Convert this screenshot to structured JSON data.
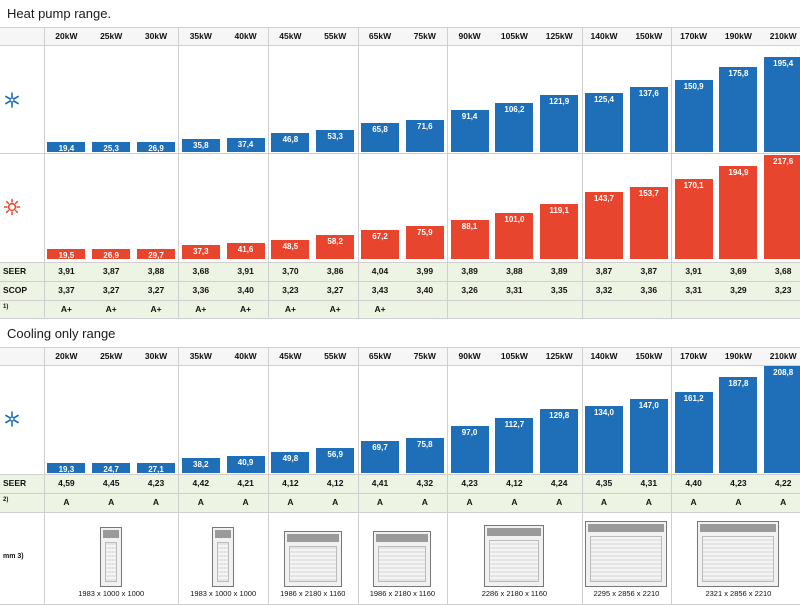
{
  "sections": [
    {
      "title": "Heat pump range.",
      "cooling_icon": "snowflake-icon",
      "heating_icon": "sun-icon",
      "row_labels": {
        "seer": "SEER",
        "scop": "SCOP",
        "energy": "1)"
      }
    },
    {
      "title": "Cooling only range",
      "cooling_icon": "snowflake-icon",
      "row_labels": {
        "seer": "SEER",
        "energy": "2)",
        "dimensions": "mm 3)"
      }
    }
  ],
  "colors": {
    "cooling": "#1f6fb8",
    "heating": "#e8452e",
    "efficiency_row": "#eef4e4"
  },
  "chart_data": [
    {
      "type": "bar",
      "categories": [
        "20kW",
        "25kW",
        "30kW",
        "35kW",
        "40kW",
        "45kW",
        "55kW",
        "65kW",
        "75kW",
        "90kW",
        "105kW",
        "125kW",
        "140kW",
        "150kW",
        "170kW",
        "190kW",
        "210kW"
      ],
      "series": [
        {
          "values": [
            19.4,
            25.3,
            26.9,
            35.8,
            37.4,
            46.8,
            53.3,
            65.8,
            71.6,
            91.4,
            106.2,
            121.9,
            125.4,
            137.6,
            150.9,
            175.8,
            195.4
          ],
          "labels": [
            "19,4",
            "25,3",
            "26,9",
            "35,8",
            "37,4",
            "46,8",
            "53,3",
            "65,8",
            "71,6",
            "91,4",
            "106,2",
            "121,9",
            "125,4",
            "137,6",
            "150,9",
            "175,8",
            "195,4"
          ]
        },
        {
          "values": [
            19.5,
            26.9,
            29.7,
            37.3,
            41.6,
            48.5,
            58.2,
            67.2,
            75.9,
            88.1,
            101.0,
            119.1,
            143.7,
            153.7,
            170.1,
            194.9,
            217.6
          ],
          "labels": [
            "19,5",
            "26,9",
            "29,7",
            "37,3",
            "41,6",
            "48,5",
            "58,2",
            "67,2",
            "75,9",
            "88,1",
            "101,0",
            "119,1",
            "143,7",
            "153,7",
            "170,1",
            "194,9",
            "217,6"
          ]
        }
      ],
      "seer": [
        "3,91",
        "3,87",
        "3,88",
        "3,68",
        "3,91",
        "3,70",
        "3,86",
        "4,04",
        "3,99",
        "3,89",
        "3,88",
        "3,89",
        "3,87",
        "3,87",
        "3,91",
        "3,69",
        "3,68"
      ],
      "scop": [
        "3,37",
        "3,27",
        "3,27",
        "3,36",
        "3,40",
        "3,23",
        "3,27",
        "3,43",
        "3,40",
        "3,26",
        "3,31",
        "3,35",
        "3,32",
        "3,36",
        "3,31",
        "3,29",
        "3,23"
      ],
      "energy_class": [
        "A+",
        "A+",
        "A+",
        "A+",
        "A+",
        "A+",
        "A+",
        "A+",
        "",
        "",
        "",
        "",
        "",
        "",
        "",
        "",
        ""
      ]
    },
    {
      "type": "bar",
      "categories": [
        "20kW",
        "25kW",
        "30kW",
        "35kW",
        "40kW",
        "45kW",
        "55kW",
        "65kW",
        "75kW",
        "90kW",
        "105kW",
        "125kW",
        "140kW",
        "150kW",
        "170kW",
        "190kW",
        "210kW"
      ],
      "series": [
        {
          "values": [
            19.3,
            24.7,
            27.1,
            38.2,
            40.9,
            49.8,
            56.9,
            69.7,
            75.8,
            97.0,
            112.7,
            129.8,
            134.0,
            147.0,
            161.2,
            187.8,
            208.8
          ],
          "labels": [
            "19,3",
            "24,7",
            "27,1",
            "38,2",
            "40,9",
            "49,8",
            "56,9",
            "69,7",
            "75,8",
            "97,0",
            "112,7",
            "129,8",
            "134,0",
            "147,0",
            "161,2",
            "187,8",
            "208,8"
          ]
        }
      ],
      "seer": [
        "4,59",
        "4,45",
        "4,23",
        "4,42",
        "4,21",
        "4,12",
        "4,12",
        "4,41",
        "4,32",
        "4,23",
        "4,12",
        "4,24",
        "4,35",
        "4,31",
        "4,40",
        "4,23",
        "4,22"
      ],
      "energy_class": [
        "A",
        "A",
        "A",
        "A",
        "A",
        "A",
        "A",
        "A",
        "A",
        "A",
        "A",
        "A",
        "A",
        "A",
        "A",
        "A",
        "A"
      ],
      "dimensions": [
        "1983 x 1000 x 1000",
        "1983 x 1000 x 1000",
        "1986 x 2180 x 1160",
        "1986 x 2180 x 1160",
        "2286 x 2180 x 1160",
        "2295 x 2856 x 2210",
        "2321 x 2856 x 2210"
      ]
    }
  ]
}
